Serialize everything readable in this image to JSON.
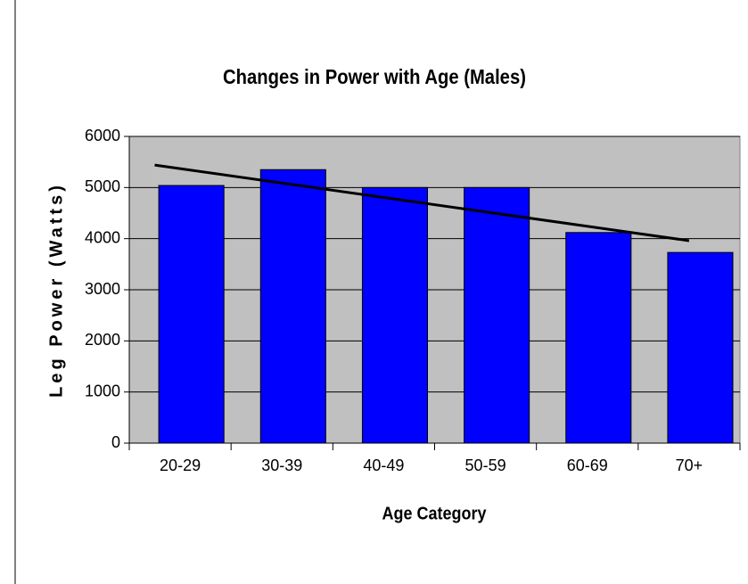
{
  "chart_data": {
    "type": "bar",
    "title": "Changes in Power with Age (Males)",
    "x_label": "Age Category",
    "y_label": "Leg Power (Watts)",
    "categories": [
      "20-29",
      "30-39",
      "40-49",
      "50-59",
      "60-69",
      "70+"
    ],
    "values": [
      5040,
      5350,
      5000,
      5000,
      4120,
      3730
    ],
    "color": "#0000ff",
    "trendline": [
      5440,
      3960
    ],
    "trendline_color": "#000000",
    "ylim": [
      0,
      6000
    ],
    "yticks": [
      0,
      1000,
      2000,
      3000,
      4000,
      5000,
      6000
    ],
    "grid": true
  }
}
